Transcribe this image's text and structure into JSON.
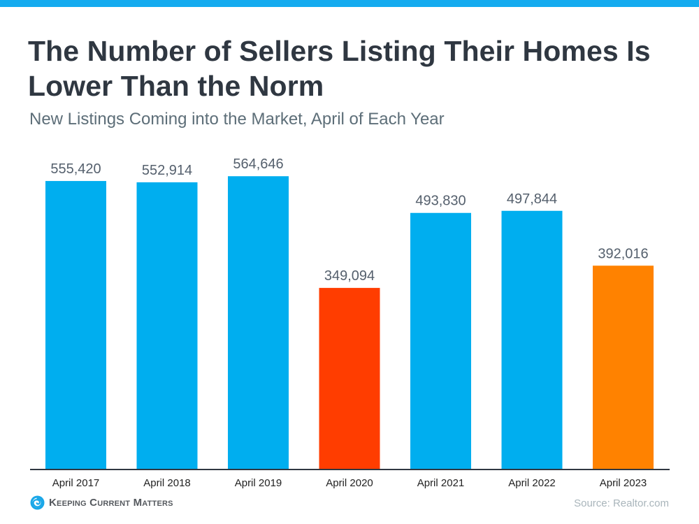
{
  "header": {
    "title": "The Number of Sellers Listing Their Homes Is Lower Than the Norm",
    "subtitle": "New Listings Coming into the Market, April of Each Year"
  },
  "colors": {
    "top_bar": "#14ABEF",
    "default_bar": "#00AEEF",
    "highlight_low": "#FF3D00",
    "highlight_current": "#FF8200"
  },
  "chart_data": {
    "type": "bar",
    "title": "The Number of Sellers Listing Their Homes Is Lower Than the Norm",
    "subtitle": "New Listings Coming into the Market, April of Each Year",
    "xlabel": "",
    "ylabel": "",
    "categories": [
      "April 2017",
      "April 2018",
      "April 2019",
      "April 2020",
      "April 2021",
      "April 2022",
      "April 2023"
    ],
    "values": [
      555420,
      552914,
      564646,
      349094,
      493830,
      497844,
      392016
    ],
    "value_labels": [
      "555,420",
      "552,914",
      "564,646",
      "349,094",
      "493,830",
      "497,844",
      "392,016"
    ],
    "bar_colors": [
      "#00AEEF",
      "#00AEEF",
      "#00AEEF",
      "#FF3D00",
      "#00AEEF",
      "#00AEEF",
      "#FF8200"
    ],
    "ylim": [
      0,
      600000
    ],
    "grid": false,
    "legend": "none"
  },
  "footer": {
    "logo_text": "Keeping Current Matters",
    "source": "Source: Realtor.com"
  }
}
